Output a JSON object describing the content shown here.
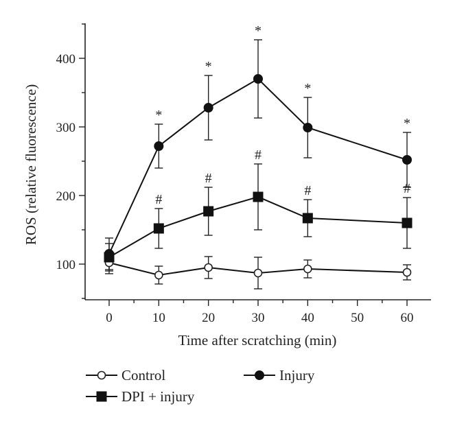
{
  "chart_data": {
    "type": "line",
    "xlabel": "Time after scratching (min)",
    "ylabel": "ROS (relative fluorescence)",
    "xlim": [
      -6,
      67
    ],
    "ylim": [
      50,
      455
    ],
    "xticks": [
      0,
      10,
      20,
      30,
      40,
      50,
      60
    ],
    "yticks": [
      100,
      200,
      300,
      400
    ],
    "legend_position": "bottom",
    "series": [
      {
        "name": "Control",
        "marker": "open-circle",
        "x": [
          0,
          10,
          20,
          30,
          40,
          60
        ],
        "y": [
          102,
          84,
          95,
          87,
          93,
          88
        ],
        "err": [
          16,
          13,
          16,
          23,
          13,
          11
        ]
      },
      {
        "name": "Injury",
        "marker": "filled-circle",
        "x": [
          0,
          10,
          20,
          30,
          40,
          60
        ],
        "y": [
          115,
          272,
          328,
          370,
          299,
          252
        ],
        "err": [
          23,
          32,
          47,
          57,
          44,
          40
        ],
        "annotations": [
          "",
          "*",
          "*",
          "*",
          "*",
          "*"
        ]
      },
      {
        "name": "DPI + injury",
        "marker": "filled-square",
        "x": [
          0,
          10,
          20,
          30,
          40,
          60
        ],
        "y": [
          110,
          152,
          177,
          198,
          167,
          160
        ],
        "err": [
          20,
          29,
          35,
          48,
          27,
          37
        ],
        "annotations": [
          "",
          "#",
          "#",
          "#",
          "#",
          "#"
        ]
      }
    ]
  }
}
